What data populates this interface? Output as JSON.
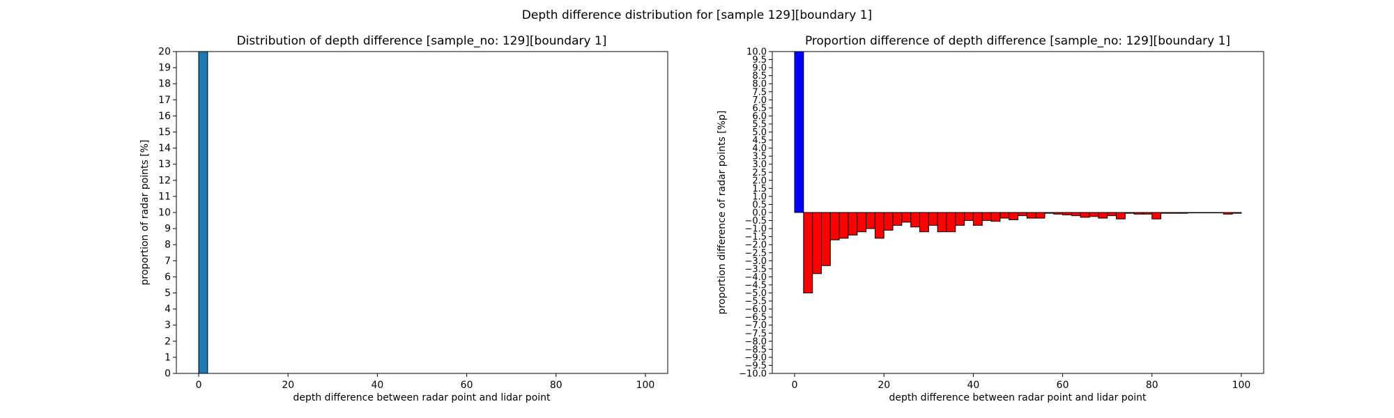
{
  "suptitle": "Depth difference distribution for [sample 129][boundary 1]",
  "chart_data": [
    {
      "type": "bar",
      "title": "Distribution of depth difference [sample_no: 129][boundary 1]",
      "xlabel": "depth difference between radar point and lidar point",
      "ylabel": "proportion of radar points [%]",
      "xlim": [
        -5,
        105
      ],
      "ylim": [
        0,
        20
      ],
      "x_ticks": [
        0,
        20,
        40,
        60,
        80,
        100
      ],
      "y_ticks": [
        0,
        1,
        2,
        3,
        4,
        5,
        6,
        7,
        8,
        9,
        10,
        11,
        12,
        13,
        14,
        15,
        16,
        17,
        18,
        19,
        20
      ],
      "bin_width": 2,
      "bar_color": "#1f77b4",
      "bars": [
        {
          "x": 1,
          "value": 20
        }
      ]
    },
    {
      "type": "bar",
      "title": "Proportion difference of depth difference [sample_no: 129][boundary 1]",
      "xlabel": "depth difference between radar point and lidar point",
      "ylabel": "proportion difference of radar points [%p]",
      "xlim": [
        -5,
        105
      ],
      "ylim": [
        -10,
        10
      ],
      "x_ticks": [
        0,
        20,
        40,
        60,
        80,
        100
      ],
      "y_ticks": [
        -10,
        -9.5,
        -9,
        -8.5,
        -8,
        -7.5,
        -7,
        -6.5,
        -6,
        -5.5,
        -5,
        -4.5,
        -4,
        -3.5,
        -3,
        -2.5,
        -2,
        -1.5,
        -1,
        -0.5,
        0,
        0.5,
        1,
        1.5,
        2,
        2.5,
        3,
        3.5,
        4,
        4.5,
        5,
        5.5,
        6,
        6.5,
        7,
        7.5,
        8,
        8.5,
        9,
        9.5,
        10
      ],
      "bin_width": 2,
      "positive_color": "#0000ff",
      "negative_color": "#ff0000",
      "bars": [
        {
          "x": 1,
          "value": 10
        },
        {
          "x": 3,
          "value": -5.0
        },
        {
          "x": 5,
          "value": -3.8
        },
        {
          "x": 7,
          "value": -3.3
        },
        {
          "x": 9,
          "value": -1.7
        },
        {
          "x": 11,
          "value": -1.6
        },
        {
          "x": 13,
          "value": -1.4
        },
        {
          "x": 15,
          "value": -1.2
        },
        {
          "x": 17,
          "value": -1.0
        },
        {
          "x": 19,
          "value": -1.6
        },
        {
          "x": 21,
          "value": -1.1
        },
        {
          "x": 23,
          "value": -0.8
        },
        {
          "x": 25,
          "value": -0.6
        },
        {
          "x": 27,
          "value": -0.9
        },
        {
          "x": 29,
          "value": -1.2
        },
        {
          "x": 31,
          "value": -0.8
        },
        {
          "x": 33,
          "value": -1.2
        },
        {
          "x": 35,
          "value": -1.2
        },
        {
          "x": 37,
          "value": -0.8
        },
        {
          "x": 39,
          "value": -0.5
        },
        {
          "x": 41,
          "value": -0.8
        },
        {
          "x": 43,
          "value": -0.5
        },
        {
          "x": 45,
          "value": -0.55
        },
        {
          "x": 47,
          "value": -0.35
        },
        {
          "x": 49,
          "value": -0.45
        },
        {
          "x": 51,
          "value": -0.2
        },
        {
          "x": 53,
          "value": -0.35
        },
        {
          "x": 55,
          "value": -0.35
        },
        {
          "x": 57,
          "value": -0.05
        },
        {
          "x": 59,
          "value": -0.1
        },
        {
          "x": 61,
          "value": -0.15
        },
        {
          "x": 63,
          "value": -0.2
        },
        {
          "x": 65,
          "value": -0.3
        },
        {
          "x": 67,
          "value": -0.25
        },
        {
          "x": 69,
          "value": -0.35
        },
        {
          "x": 71,
          "value": -0.2
        },
        {
          "x": 73,
          "value": -0.4
        },
        {
          "x": 75,
          "value": -0.05
        },
        {
          "x": 77,
          "value": -0.1
        },
        {
          "x": 79,
          "value": -0.1
        },
        {
          "x": 81,
          "value": -0.4
        },
        {
          "x": 83,
          "value": -0.05
        },
        {
          "x": 85,
          "value": -0.05
        },
        {
          "x": 87,
          "value": -0.05
        },
        {
          "x": 89,
          "value": -0.02
        },
        {
          "x": 91,
          "value": -0.02
        },
        {
          "x": 93,
          "value": -0.02
        },
        {
          "x": 95,
          "value": -0.02
        },
        {
          "x": 97,
          "value": -0.1
        },
        {
          "x": 99,
          "value": -0.05
        }
      ]
    }
  ]
}
